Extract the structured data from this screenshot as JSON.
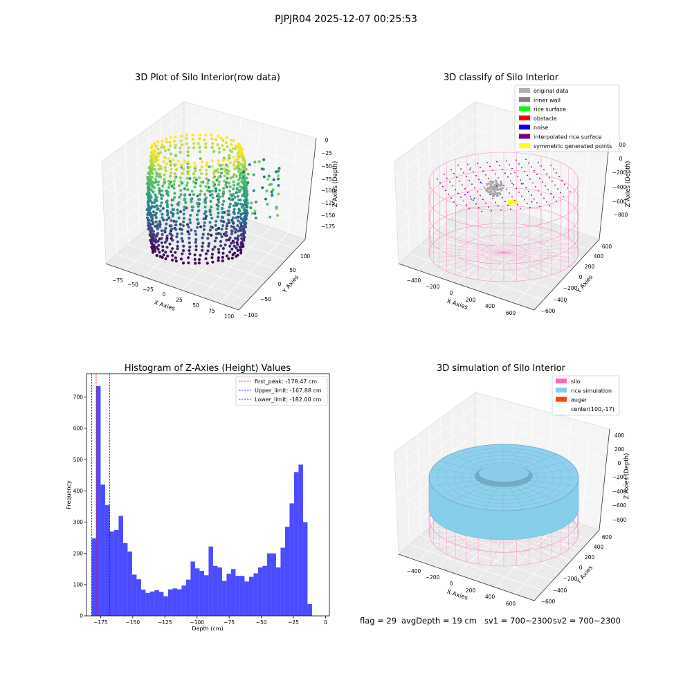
{
  "suptitle": "PJPJR04 2025-12-07 00:25:53",
  "footer": {
    "flag": "flag = 29",
    "avg_depth": "avgDepth = 19 cm",
    "sv1": "sv1 = 700~2300",
    "sv2": "sv2 = 700~2300"
  },
  "panel_raw": {
    "title": "3D Plot of Silo Interior(row data)",
    "xlabel": "X Axies",
    "ylabel": "Y Axies",
    "zlabel": "Z Axies (Depth)",
    "x_ticks": [
      "−75",
      "−50",
      "−25",
      "0",
      "25",
      "50",
      "75",
      "100"
    ],
    "y_ticks": [
      "−100",
      "−50",
      "0",
      "50",
      "100"
    ],
    "z_ticks": [
      "0",
      "−25",
      "−50",
      "−75",
      "−100",
      "−125",
      "−150",
      "−175"
    ],
    "colormap": "viridis"
  },
  "panel_classify": {
    "title": "3D classify of Silo Interior",
    "xlabel": "X Axies",
    "ylabel": "Y Axies",
    "zlabel": "Z Axies (Depth)",
    "x_ticks": [
      "−400",
      "−200",
      "0",
      "200",
      "400",
      "600"
    ],
    "y_ticks": [
      "−600",
      "−400",
      "−200",
      "0",
      "200",
      "400",
      "600"
    ],
    "z_ticks": [
      "200",
      "0",
      "−200",
      "−400",
      "−600",
      "−800"
    ],
    "legend": [
      {
        "label": "original data",
        "color": "#b0b0b0"
      },
      {
        "label": "inner wall",
        "color": "#808080"
      },
      {
        "label": "rice surface",
        "color": "#00ff00"
      },
      {
        "label": "obstacle",
        "color": "#ff0000"
      },
      {
        "label": "noise",
        "color": "#0000ff"
      },
      {
        "label": "interpolated rice surface",
        "color": "#800080"
      },
      {
        "label": "symmetric generated points",
        "color": "#ffff00"
      }
    ]
  },
  "panel_sim": {
    "title": "3D simulation of Silo Interior",
    "xlabel": "X Axies",
    "ylabel": "Y Axies",
    "zlabel": "Z Axies (Depth)",
    "x_ticks": [
      "−400",
      "−200",
      "0",
      "200",
      "400",
      "600"
    ],
    "y_ticks": [
      "−600",
      "−400",
      "−200",
      "0",
      "200",
      "400",
      "600"
    ],
    "z_ticks": [
      "400",
      "200",
      "0",
      "−200",
      "−400",
      "−600",
      "−800"
    ],
    "legend": [
      {
        "label": "silo",
        "color": "#ff69b4"
      },
      {
        "label": "rice simulation",
        "color": "#87ceeb"
      },
      {
        "label": "auger",
        "color": "#ff4500"
      },
      {
        "label": "center(100,-17)",
        "color": ""
      }
    ]
  },
  "chart_data": {
    "type": "bar",
    "title": "Histogram of Z-Axies (Height) Values",
    "xlabel": "Depth (cm)",
    "ylabel": "Frequency",
    "xlim": [
      -186,
      3
    ],
    "ylim": [
      0,
      775
    ],
    "x_ticks": [
      -175,
      -150,
      -125,
      -100,
      -75,
      -50,
      -25,
      0
    ],
    "x_tick_labels": [
      "−175",
      "−150",
      "−125",
      "−100",
      "−75",
      "−50",
      "−25",
      "0"
    ],
    "y_ticks": [
      0,
      100,
      200,
      300,
      400,
      500,
      600,
      700
    ],
    "y_tick_labels": [
      "0",
      "100",
      "200",
      "300",
      "400",
      "500",
      "600",
      "700"
    ],
    "bin_start": -182,
    "bin_width": 3.5,
    "bar_color": "#0000ff",
    "values": [
      248,
      735,
      420,
      355,
      270,
      275,
      320,
      233,
      206,
      132,
      117,
      84,
      73,
      78,
      82,
      77,
      63,
      85,
      88,
      85,
      97,
      116,
      174,
      152,
      144,
      130,
      222,
      160,
      155,
      112,
      135,
      150,
      128,
      128,
      110,
      125,
      136,
      155,
      160,
      200,
      200,
      155,
      218,
      285,
      360,
      460,
      484,
      300,
      38
    ],
    "vlines": [
      {
        "x": -178.47,
        "color": "#ff0000",
        "label": "first_peak: -178.47 cm"
      },
      {
        "x": -167.88,
        "color": "#0000ff",
        "label": "Upper_limit: -167.88 cm"
      },
      {
        "x": -182.0,
        "color": "#0000ff",
        "label": "Lower_limit: -182.00 cm"
      }
    ],
    "legend_position": "upper right"
  }
}
